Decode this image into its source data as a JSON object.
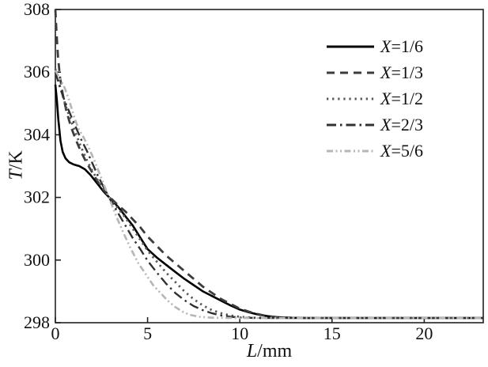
{
  "figure": {
    "background": "#ffffff",
    "frame_color": "#222222",
    "text_color": "#111111"
  },
  "chart_data": {
    "type": "line",
    "xlabel_var": "L",
    "xlabel_unit": "/mm",
    "ylabel_var": "T",
    "ylabel_unit": "/K",
    "xlim": [
      0,
      23.2
    ],
    "ylim": [
      298,
      308
    ],
    "x_tick_values": [
      0,
      5,
      10,
      15,
      20
    ],
    "x_tick_labels": [
      "0",
      "5",
      "10",
      "15",
      "20"
    ],
    "y_tick_values": [
      298,
      300,
      302,
      304,
      306,
      308
    ],
    "y_tick_labels": [
      "298",
      "300",
      "302",
      "304",
      "306",
      "308"
    ],
    "grid": false,
    "legend_position": "upper right",
    "series": [
      {
        "id": "x-1-6",
        "name": "X=1/6",
        "label_var": "X",
        "label_rest": "=1/6",
        "line_style": "solid",
        "color": "#000000",
        "width": 2.6,
        "dash": "",
        "points": [
          [
            0,
            305.6
          ],
          [
            0.08,
            305.1
          ],
          [
            0.16,
            304.5
          ],
          [
            0.28,
            303.8
          ],
          [
            0.4,
            303.45
          ],
          [
            0.55,
            303.25
          ],
          [
            0.75,
            303.12
          ],
          [
            1.0,
            303.05
          ],
          [
            1.3,
            303.0
          ],
          [
            1.6,
            302.9
          ],
          [
            1.9,
            302.72
          ],
          [
            2.2,
            302.5
          ],
          [
            2.6,
            302.2
          ],
          [
            3.0,
            301.95
          ],
          [
            3.4,
            301.7
          ],
          [
            3.8,
            301.4
          ],
          [
            4.2,
            301.1
          ],
          [
            4.6,
            300.72
          ],
          [
            5.0,
            300.35
          ],
          [
            5.5,
            300.08
          ],
          [
            6.0,
            299.85
          ],
          [
            6.5,
            299.62
          ],
          [
            7.0,
            299.4
          ],
          [
            7.5,
            299.2
          ],
          [
            8.0,
            299.0
          ],
          [
            8.5,
            298.85
          ],
          [
            9.0,
            298.7
          ],
          [
            9.5,
            298.55
          ],
          [
            10.0,
            298.42
          ],
          [
            10.5,
            298.33
          ],
          [
            11.0,
            298.26
          ],
          [
            11.5,
            298.21
          ],
          [
            12.0,
            298.18
          ],
          [
            12.6,
            298.16
          ],
          [
            13.5,
            298.15
          ],
          [
            16,
            298.15
          ],
          [
            20,
            298.15
          ],
          [
            23.2,
            298.15
          ]
        ]
      },
      {
        "id": "x-1-3",
        "name": "X=1/3",
        "label_var": "X",
        "label_rest": "=1/3",
        "line_style": "dashed",
        "color": "#3c3c3c",
        "width": 2.8,
        "dash": "10 7",
        "points": [
          [
            0,
            308.0
          ],
          [
            0.06,
            307.3
          ],
          [
            0.14,
            306.5
          ],
          [
            0.25,
            305.85
          ],
          [
            0.4,
            305.3
          ],
          [
            0.6,
            304.75
          ],
          [
            0.85,
            304.25
          ],
          [
            1.1,
            303.85
          ],
          [
            1.4,
            303.45
          ],
          [
            1.7,
            303.1
          ],
          [
            2.0,
            302.8
          ],
          [
            2.3,
            302.5
          ],
          [
            2.6,
            302.25
          ],
          [
            3.0,
            301.98
          ],
          [
            3.4,
            301.75
          ],
          [
            3.8,
            301.55
          ],
          [
            4.2,
            301.3
          ],
          [
            4.6,
            301.05
          ],
          [
            5.0,
            300.75
          ],
          [
            5.5,
            300.45
          ],
          [
            6.0,
            300.15
          ],
          [
            6.5,
            299.9
          ],
          [
            7.0,
            299.65
          ],
          [
            7.5,
            299.4
          ],
          [
            8.0,
            299.15
          ],
          [
            8.5,
            298.95
          ],
          [
            9.0,
            298.75
          ],
          [
            9.5,
            298.6
          ],
          [
            10.0,
            298.45
          ],
          [
            10.5,
            298.35
          ],
          [
            11.0,
            298.27
          ],
          [
            11.5,
            298.21
          ],
          [
            12.0,
            298.18
          ],
          [
            12.8,
            298.16
          ],
          [
            14,
            298.15
          ],
          [
            18,
            298.15
          ],
          [
            23.2,
            298.15
          ]
        ]
      },
      {
        "id": "x-1-2",
        "name": "X=1/2",
        "label_var": "X",
        "label_rest": "=1/2",
        "line_style": "dotted",
        "color": "#585858",
        "width": 2.8,
        "dash": "2.3 4.8",
        "points": [
          [
            0,
            306.1
          ],
          [
            0.2,
            305.65
          ],
          [
            0.4,
            305.25
          ],
          [
            0.6,
            304.85
          ],
          [
            0.85,
            304.45
          ],
          [
            1.1,
            304.05
          ],
          [
            1.4,
            303.6
          ],
          [
            1.7,
            303.2
          ],
          [
            2.0,
            302.85
          ],
          [
            2.3,
            302.55
          ],
          [
            2.6,
            302.3
          ],
          [
            3.0,
            301.95
          ],
          [
            3.4,
            301.65
          ],
          [
            3.8,
            301.35
          ],
          [
            4.2,
            301.0
          ],
          [
            4.6,
            300.65
          ],
          [
            5.0,
            300.3
          ],
          [
            5.5,
            299.95
          ],
          [
            6.0,
            299.6
          ],
          [
            6.5,
            299.3
          ],
          [
            7.0,
            299.0
          ],
          [
            7.5,
            298.75
          ],
          [
            8.0,
            298.55
          ],
          [
            8.5,
            298.4
          ],
          [
            9.0,
            298.3
          ],
          [
            9.5,
            298.23
          ],
          [
            10.0,
            298.19
          ],
          [
            10.7,
            298.16
          ],
          [
            12,
            298.15
          ],
          [
            23.2,
            298.15
          ]
        ]
      },
      {
        "id": "x-2-3",
        "name": "X=2/3",
        "label_var": "X",
        "label_rest": "=2/3",
        "line_style": "dashdot",
        "color": "#303030",
        "width": 2.4,
        "dash": "12 5 2.5 5",
        "points": [
          [
            0,
            306.0
          ],
          [
            0.2,
            305.6
          ],
          [
            0.4,
            305.25
          ],
          [
            0.6,
            304.95
          ],
          [
            0.85,
            304.6
          ],
          [
            1.1,
            304.25
          ],
          [
            1.4,
            303.85
          ],
          [
            1.7,
            303.5
          ],
          [
            2.0,
            303.1
          ],
          [
            2.3,
            302.7
          ],
          [
            2.6,
            302.35
          ],
          [
            3.0,
            301.9
          ],
          [
            3.4,
            301.5
          ],
          [
            3.8,
            301.1
          ],
          [
            4.2,
            300.7
          ],
          [
            4.6,
            300.35
          ],
          [
            5.0,
            299.98
          ],
          [
            5.5,
            299.6
          ],
          [
            6.0,
            299.25
          ],
          [
            6.5,
            298.95
          ],
          [
            7.0,
            298.72
          ],
          [
            7.5,
            298.53
          ],
          [
            8.0,
            298.4
          ],
          [
            8.5,
            298.3
          ],
          [
            9.0,
            298.23
          ],
          [
            9.5,
            298.19
          ],
          [
            10.2,
            298.16
          ],
          [
            11.5,
            298.15
          ],
          [
            23.2,
            298.15
          ]
        ]
      },
      {
        "id": "x-5-6",
        "name": "X=5/6",
        "label_var": "X",
        "label_rest": "=5/6",
        "line_style": "dashdotdot",
        "color": "#b6b6b6",
        "width": 2.6,
        "dash": "8 3.5 2 3.5 2 3.5",
        "points": [
          [
            0,
            306.05
          ],
          [
            0.25,
            305.8
          ],
          [
            0.5,
            305.5
          ],
          [
            0.75,
            305.1
          ],
          [
            1.0,
            304.6
          ],
          [
            1.25,
            304.2
          ],
          [
            1.5,
            303.95
          ],
          [
            1.8,
            303.6
          ],
          [
            2.1,
            303.2
          ],
          [
            2.4,
            302.75
          ],
          [
            2.7,
            302.3
          ],
          [
            3.0,
            301.85
          ],
          [
            3.3,
            301.4
          ],
          [
            3.7,
            300.85
          ],
          [
            4.1,
            300.35
          ],
          [
            4.5,
            299.9
          ],
          [
            4.9,
            299.55
          ],
          [
            5.3,
            299.2
          ],
          [
            5.7,
            298.95
          ],
          [
            6.1,
            298.7
          ],
          [
            6.5,
            298.5
          ],
          [
            6.9,
            298.35
          ],
          [
            7.3,
            298.25
          ],
          [
            7.8,
            298.19
          ],
          [
            8.5,
            298.16
          ],
          [
            10,
            298.15
          ],
          [
            23.2,
            298.15
          ]
        ]
      }
    ]
  }
}
